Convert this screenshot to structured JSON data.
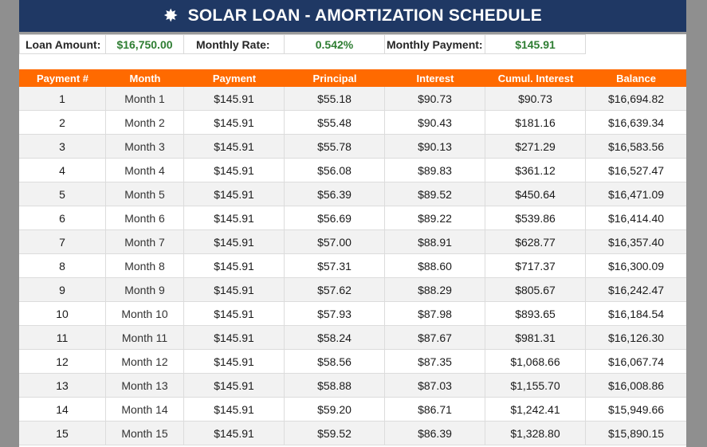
{
  "title": "SOLAR LOAN - AMORTIZATION SCHEDULE",
  "title_icon": "sun-icon",
  "colors": {
    "header": "#1f3864",
    "accent": "#ff6a00",
    "value_green": "#2e7d32"
  },
  "summary": {
    "loan_amount_label": "Loan Amount:",
    "loan_amount": "$16,750.00",
    "monthly_rate_label": "Monthly Rate:",
    "monthly_rate": "0.542%",
    "monthly_payment_label": "Monthly Payment:",
    "monthly_payment": "$145.91"
  },
  "columns": [
    "Payment #",
    "Month",
    "Payment",
    "Principal",
    "Interest",
    "Cumul. Interest",
    "Balance"
  ],
  "rows": [
    [
      "1",
      "Month 1",
      "$145.91",
      "$55.18",
      "$90.73",
      "$90.73",
      "$16,694.82"
    ],
    [
      "2",
      "Month 2",
      "$145.91",
      "$55.48",
      "$90.43",
      "$181.16",
      "$16,639.34"
    ],
    [
      "3",
      "Month 3",
      "$145.91",
      "$55.78",
      "$90.13",
      "$271.29",
      "$16,583.56"
    ],
    [
      "4",
      "Month 4",
      "$145.91",
      "$56.08",
      "$89.83",
      "$361.12",
      "$16,527.47"
    ],
    [
      "5",
      "Month 5",
      "$145.91",
      "$56.39",
      "$89.52",
      "$450.64",
      "$16,471.09"
    ],
    [
      "6",
      "Month 6",
      "$145.91",
      "$56.69",
      "$89.22",
      "$539.86",
      "$16,414.40"
    ],
    [
      "7",
      "Month 7",
      "$145.91",
      "$57.00",
      "$88.91",
      "$628.77",
      "$16,357.40"
    ],
    [
      "8",
      "Month 8",
      "$145.91",
      "$57.31",
      "$88.60",
      "$717.37",
      "$16,300.09"
    ],
    [
      "9",
      "Month 9",
      "$145.91",
      "$57.62",
      "$88.29",
      "$805.67",
      "$16,242.47"
    ],
    [
      "10",
      "Month 10",
      "$145.91",
      "$57.93",
      "$87.98",
      "$893.65",
      "$16,184.54"
    ],
    [
      "11",
      "Month 11",
      "$145.91",
      "$58.24",
      "$87.67",
      "$981.31",
      "$16,126.30"
    ],
    [
      "12",
      "Month 12",
      "$145.91",
      "$58.56",
      "$87.35",
      "$1,068.66",
      "$16,067.74"
    ],
    [
      "13",
      "Month 13",
      "$145.91",
      "$58.88",
      "$87.03",
      "$1,155.70",
      "$16,008.86"
    ],
    [
      "14",
      "Month 14",
      "$145.91",
      "$59.20",
      "$86.71",
      "$1,242.41",
      "$15,949.66"
    ],
    [
      "15",
      "Month 15",
      "$145.91",
      "$59.52",
      "$86.39",
      "$1,328.80",
      "$15,890.15"
    ]
  ]
}
